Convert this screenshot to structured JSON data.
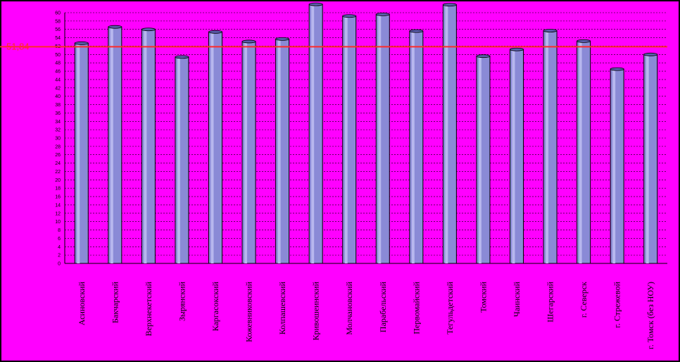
{
  "chart_data": {
    "type": "bar",
    "title": "",
    "xlabel": "",
    "ylabel": "",
    "ylim": [
      0,
      60
    ],
    "ytick_step": 2,
    "grid": true,
    "legend": "none",
    "categories": [
      "Асиновский",
      "Бакчарский",
      "Верхнекетский",
      "Зырянский",
      "Каргасокский",
      "Кожевниковский",
      "Колпашевский",
      "Кривошеинский",
      "Молчановский",
      "Парабельский",
      "Первомайский",
      "Тегульдетский",
      "Томский",
      "Чаинский",
      "Шегарский",
      "г. Северск",
      "г. Стрежевой",
      "г. Томск (без НОУ)"
    ],
    "series": [
      {
        "values": [
          52.7,
          56.6,
          56.0,
          49.4,
          55.4,
          53.1,
          53.7,
          62.0,
          59.2,
          59.6,
          55.6,
          61.9,
          49.6,
          51.2,
          55.7,
          53.2,
          46.5,
          50.0
        ]
      }
    ],
    "reference_line": {
      "value": 51.84,
      "label": "51,84"
    },
    "colors": {
      "background": "#000000",
      "plot_area": "#ff00ff",
      "bar_fill": "#8a8ad6",
      "bar_edge": "#000000",
      "gridline": "#000000",
      "reference_line": "#ff2a2a"
    }
  }
}
